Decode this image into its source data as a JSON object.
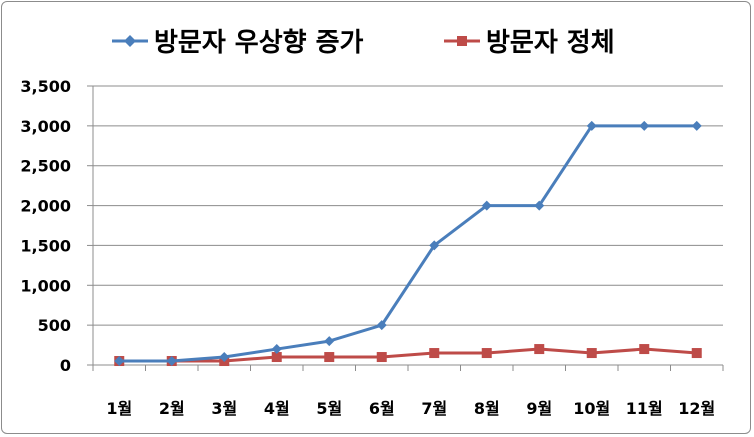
{
  "chart_data": {
    "type": "line",
    "title": "",
    "xlabel": "",
    "ylabel": "",
    "categories": [
      "1월",
      "2월",
      "3월",
      "4월",
      "5월",
      "6월",
      "7월",
      "8월",
      "9월",
      "10월",
      "11월",
      "12월"
    ],
    "ylim": [
      0,
      3500
    ],
    "yticks": [
      0,
      500,
      1000,
      1500,
      2000,
      2500,
      3000,
      3500
    ],
    "ytick_labels": [
      "0",
      "500",
      "1,000",
      "1,500",
      "2,000",
      "2,500",
      "3,000",
      "3,500"
    ],
    "grid": "horizontal",
    "legend_position": "top",
    "series": [
      {
        "name": "방문자 우상향 증가",
        "color": "#4a7ebb",
        "marker": "diamond",
        "values": [
          50,
          50,
          100,
          200,
          300,
          500,
          1500,
          2000,
          2000,
          3000,
          3000,
          3000
        ]
      },
      {
        "name": "방문자 정체",
        "color": "#be4b48",
        "marker": "square",
        "values": [
          50,
          50,
          50,
          100,
          100,
          100,
          150,
          150,
          200,
          150,
          200,
          150
        ]
      }
    ]
  }
}
